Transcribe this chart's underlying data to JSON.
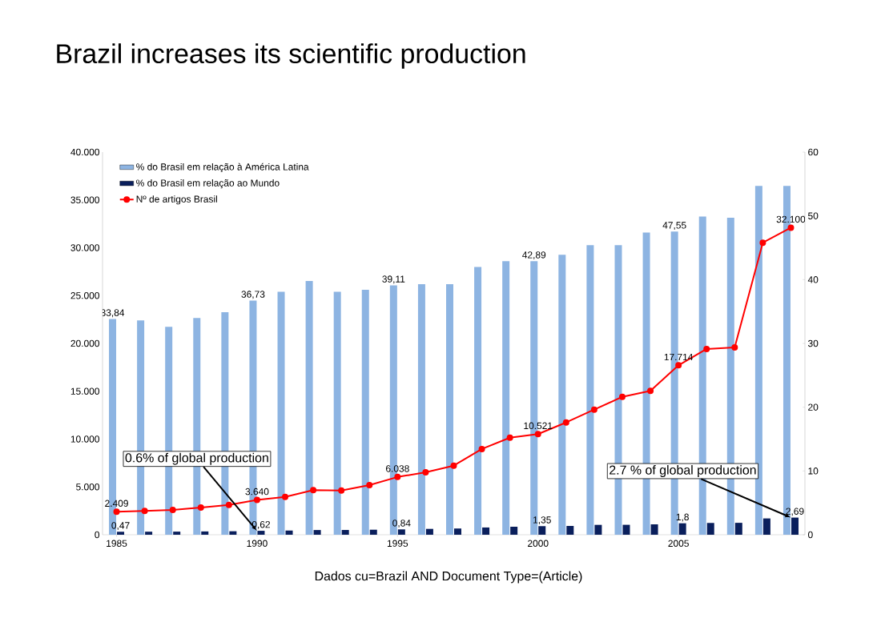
{
  "chart_data": {
    "type": "bar",
    "title": "Brazil increases its scientific production",
    "x": [
      1985,
      1986,
      1987,
      1988,
      1989,
      1990,
      1991,
      1992,
      1993,
      1994,
      1995,
      1996,
      1997,
      1998,
      1999,
      2000,
      2001,
      2002,
      2003,
      2004,
      2005,
      2006,
      2007,
      2008,
      2009
    ],
    "xlim": [
      1984.5,
      2009.5
    ],
    "xticks": [
      1985,
      1990,
      1995,
      2000,
      2005
    ],
    "ylim": [
      0,
      40000
    ],
    "yticks": [
      {
        "value": 0,
        "label": "0"
      },
      {
        "value": 5000,
        "label": "5.000"
      },
      {
        "value": 10000,
        "label": "10.000"
      },
      {
        "value": 15000,
        "label": "15.000"
      },
      {
        "value": 20000,
        "label": "20.000"
      },
      {
        "value": 25000,
        "label": "25.000"
      },
      {
        "value": 30000,
        "label": "30.000"
      },
      {
        "value": 35000,
        "label": "35.000"
      },
      {
        "value": 40000,
        "label": "40.000"
      }
    ],
    "y2lim": [
      0,
      60
    ],
    "y2ticks": [
      0,
      10,
      20,
      30,
      40,
      50,
      60
    ],
    "legend": "top left",
    "grid": false,
    "series": [
      {
        "name": "% do Brasil em relação à América Latina",
        "type": "bar",
        "axis": "y2",
        "color": "#8db4e2",
        "values": [
          33.84,
          33.6,
          32.6,
          34.0,
          34.9,
          36.73,
          38.1,
          39.8,
          38.1,
          38.4,
          39.11,
          39.3,
          39.3,
          42.0,
          42.9,
          42.89,
          43.9,
          45.4,
          45.4,
          47.4,
          47.55,
          49.9,
          49.7,
          54.7,
          54.7
        ],
        "value_labels": [
          "33,84",
          null,
          null,
          null,
          null,
          "36,73",
          null,
          null,
          null,
          null,
          "39,11",
          null,
          null,
          null,
          null,
          "42,89",
          null,
          null,
          null,
          null,
          "47,55",
          null,
          null,
          null,
          null
        ]
      },
      {
        "name": "% do Brasil em relação ao Mundo",
        "type": "bar",
        "axis": "y2",
        "color": "#0a1f5c",
        "values": [
          0.47,
          0.48,
          0.49,
          0.52,
          0.55,
          0.62,
          0.66,
          0.74,
          0.75,
          0.79,
          0.84,
          0.92,
          0.98,
          1.14,
          1.26,
          1.35,
          1.38,
          1.55,
          1.56,
          1.63,
          1.8,
          1.85,
          1.87,
          2.56,
          2.69
        ],
        "value_labels": [
          "0,47",
          null,
          null,
          null,
          null,
          "0,62",
          null,
          null,
          null,
          null,
          "0,84",
          null,
          null,
          null,
          null,
          "1,35",
          null,
          null,
          null,
          null,
          "1,8",
          null,
          null,
          null,
          "2,69"
        ]
      },
      {
        "name": "Nº de artigos Brasil",
        "type": "line",
        "color": "#ff0000",
        "marker": "circle",
        "values": [
          2409,
          2480,
          2600,
          2850,
          3120,
          3640,
          3960,
          4660,
          4630,
          5190,
          6038,
          6530,
          7220,
          8960,
          10150,
          10521,
          11740,
          13080,
          14420,
          15040,
          17714,
          19420,
          19590,
          30530,
          32100
        ],
        "value_labels": [
          "2.409",
          null,
          null,
          null,
          null,
          "3.640",
          null,
          null,
          null,
          null,
          "6.038",
          null,
          null,
          null,
          null,
          "10.521",
          null,
          null,
          null,
          null,
          "17.714",
          null,
          null,
          null,
          "32.100"
        ]
      }
    ],
    "annotations": [
      {
        "text": "0.6% of global production",
        "x": 1990,
        "y": 400
      },
      {
        "text": "2.7 % of global production",
        "x": 2009,
        "y": 1800
      },
      "Dados cu=Brazil AND Document Type=(Article)"
    ]
  }
}
